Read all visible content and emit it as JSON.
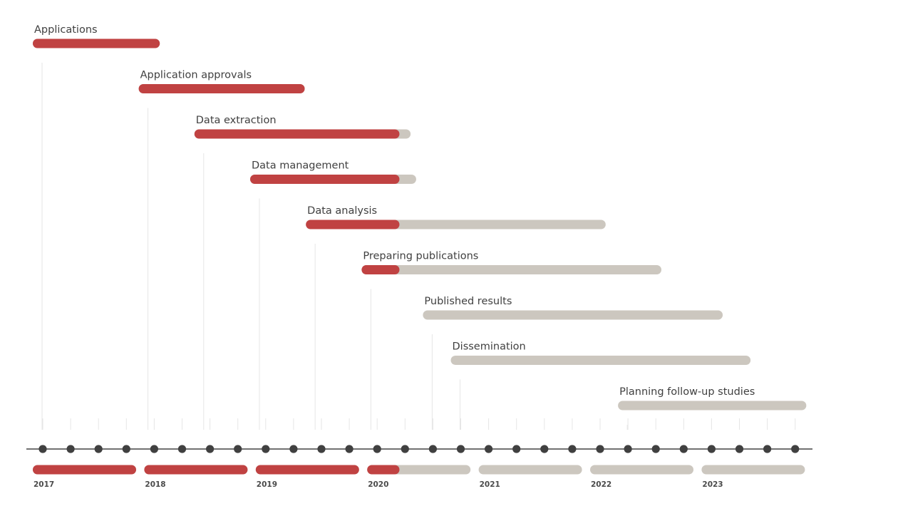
{
  "chart_data": {
    "type": "gantt-timeline",
    "title": "",
    "time_unit": "year",
    "axis_range": [
      2017.0,
      2024.0
    ],
    "today": 2020.2,
    "colors": {
      "done": "#c04242",
      "remaining": "#ccc7bf",
      "axis": "#444444",
      "dot": "#404040",
      "text": "#404040",
      "gridline": "#e6e6e6"
    },
    "tasks": [
      {
        "label": "Applications",
        "start": 2017.0,
        "end": 2018.05
      },
      {
        "label": "Application approvals",
        "start": 2017.95,
        "end": 2019.35
      },
      {
        "label": "Data extraction",
        "start": 2018.45,
        "end": 2020.3
      },
      {
        "label": "Data management",
        "start": 2018.95,
        "end": 2020.35
      },
      {
        "label": "Data analysis",
        "start": 2019.45,
        "end": 2022.05
      },
      {
        "label": "Preparing publications",
        "start": 2019.95,
        "end": 2022.55
      },
      {
        "label": "Published results",
        "start": 2020.5,
        "end": 2023.1
      },
      {
        "label": "Dissemination",
        "start": 2020.75,
        "end": 2023.35
      },
      {
        "label": "Planning follow-up studies",
        "start": 2022.25,
        "end": 2023.85
      }
    ],
    "years": [
      {
        "label": "2017",
        "start": 2017.0
      },
      {
        "label": "2018",
        "start": 2018.0
      },
      {
        "label": "2019",
        "start": 2019.0
      },
      {
        "label": "2020",
        "start": 2020.0
      },
      {
        "label": "2021",
        "start": 2021.0
      },
      {
        "label": "2022",
        "start": 2022.0
      },
      {
        "label": "2023",
        "start": 2023.0
      }
    ],
    "ticks_per_year": 4
  }
}
